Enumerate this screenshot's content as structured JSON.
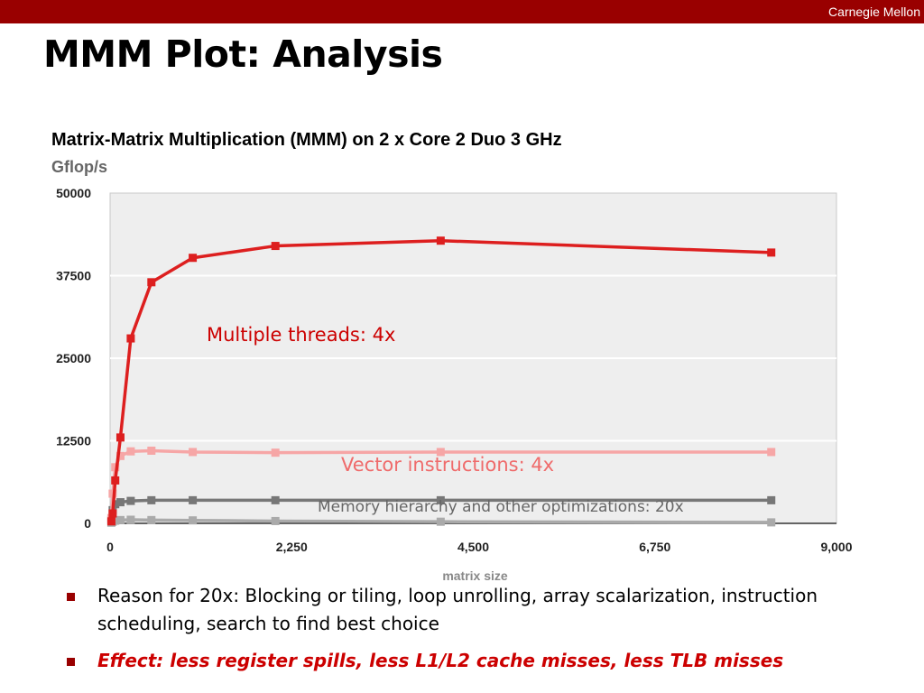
{
  "header": {
    "brand": "Carnegie Mellon",
    "brand_color": "#990000"
  },
  "slide": {
    "title": "MMM Plot: Analysis"
  },
  "chart_data": {
    "type": "line",
    "title": "Matrix-Matrix Multiplication (MMM) on 2 x Core 2 Duo 3 GHz",
    "ylabel": "Gflop/s",
    "xlabel": "matrix size",
    "xlim": [
      0,
      9000
    ],
    "ylim": [
      0,
      50000
    ],
    "xticks": [
      "0",
      "2,250",
      "4,500",
      "6,750",
      "9,000"
    ],
    "yticks": [
      "0",
      "12500",
      "25000",
      "37500",
      "50000"
    ],
    "grid": true,
    "legend": "none",
    "series": [
      {
        "color": "#dd1f1f",
        "x": [
          16,
          32,
          64,
          128,
          256,
          512,
          1024,
          2048,
          4096,
          8192
        ],
        "y": [
          300,
          1500,
          6500,
          13000,
          28000,
          36500,
          40200,
          42000,
          42800,
          41000
        ]
      },
      {
        "color": "#f6a6a6",
        "x": [
          16,
          32,
          64,
          128,
          256,
          512,
          1024,
          2048,
          4096,
          8192
        ],
        "y": [
          800,
          4500,
          8500,
          10200,
          10900,
          11000,
          10800,
          10700,
          10800,
          10800
        ]
      },
      {
        "color": "#777777",
        "x": [
          16,
          32,
          64,
          128,
          256,
          512,
          1024,
          2048,
          4096,
          8192
        ],
        "y": [
          500,
          2000,
          2900,
          3200,
          3400,
          3500,
          3500,
          3500,
          3500,
          3500
        ]
      },
      {
        "color": "#aaaaaa",
        "x": [
          16,
          32,
          64,
          128,
          256,
          512,
          1024,
          2048,
          4096,
          8192
        ],
        "y": [
          100,
          250,
          400,
          500,
          550,
          500,
          450,
          350,
          250,
          150
        ]
      }
    ],
    "annotations": [
      {
        "text": "Multiple threads: 4x",
        "color": "#cc0000"
      },
      {
        "text": "Vector instructions: 4x",
        "color": "#ef6b6b"
      },
      {
        "text": "Memory hierarchy and other optimizations: 20x",
        "color": "#666666"
      }
    ]
  },
  "bullets": [
    {
      "text": "Reason for 20x: Blocking or tiling, loop unrolling, array scalarization, instruction scheduling, search to find best choice"
    },
    {
      "text": "Effect: less register spills, less L1/L2 cache misses, less TLB misses"
    }
  ]
}
